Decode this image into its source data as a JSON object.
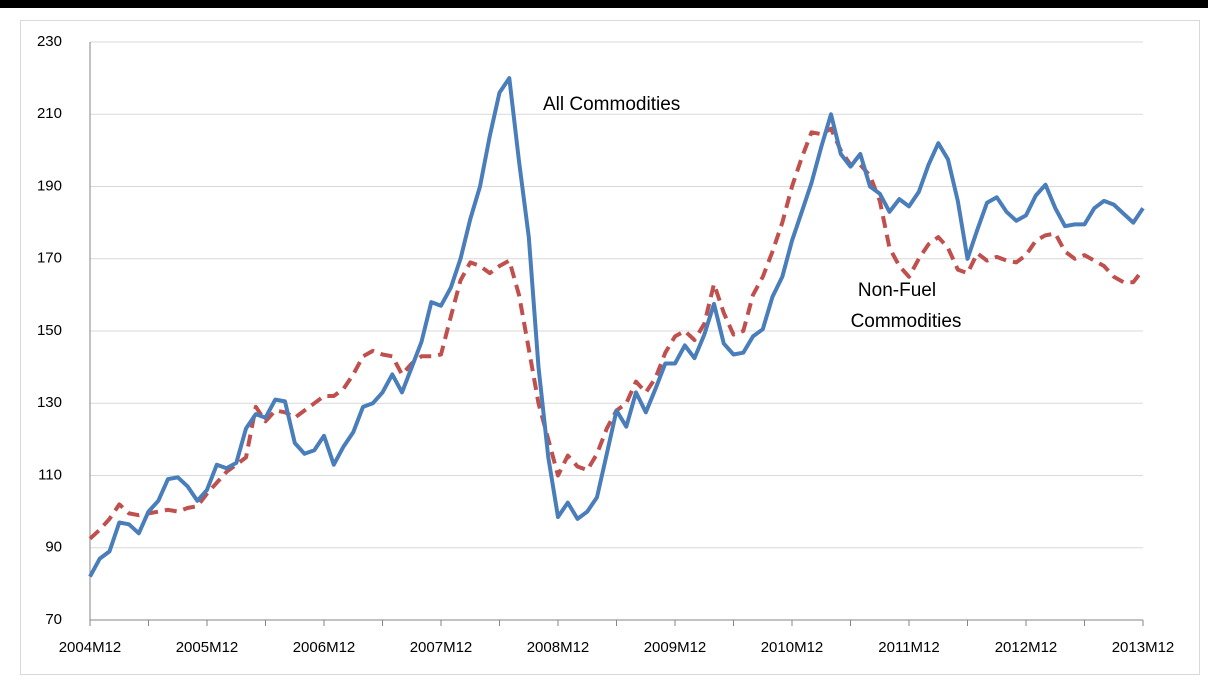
{
  "chart_data": {
    "type": "line",
    "annotations": [
      "All Commodities",
      "Non-Fuel",
      "Commodities"
    ],
    "categories": [
      "2004M12",
      null,
      null,
      null,
      null,
      null,
      null,
      null,
      null,
      null,
      null,
      null,
      "2005M12",
      null,
      null,
      null,
      null,
      null,
      null,
      null,
      null,
      null,
      null,
      null,
      "2006M12",
      null,
      null,
      null,
      null,
      null,
      null,
      null,
      null,
      null,
      null,
      null,
      "2007M12",
      null,
      null,
      null,
      null,
      null,
      null,
      null,
      null,
      null,
      null,
      null,
      "2008M12",
      null,
      null,
      null,
      null,
      null,
      null,
      null,
      null,
      null,
      null,
      null,
      "2009M12",
      null,
      null,
      null,
      null,
      null,
      null,
      null,
      null,
      null,
      null,
      null,
      "2010M12",
      null,
      null,
      null,
      null,
      null,
      null,
      null,
      null,
      null,
      null,
      null,
      "2011M12",
      null,
      null,
      null,
      null,
      null,
      null,
      null,
      null,
      null,
      null,
      null,
      "2012M12",
      null,
      null,
      null,
      null,
      null,
      null,
      null,
      null,
      null,
      null,
      null,
      "2013M12"
    ],
    "series": [
      {
        "color": "#4a7ebb",
        "style": "solid",
        "values": [
          82,
          87,
          89,
          97,
          96.5,
          94,
          100,
          103,
          109,
          109.5,
          107,
          103,
          106,
          113,
          112,
          113.5,
          123,
          127,
          126,
          131,
          130.5,
          119,
          116,
          117,
          121,
          113,
          118,
          122,
          129,
          130,
          133,
          138,
          133,
          140,
          147,
          158,
          157,
          162,
          170,
          181,
          190,
          204,
          216,
          220,
          197,
          176,
          140,
          115,
          98.5,
          102.5,
          98,
          100,
          104,
          116,
          128,
          123.5,
          133,
          127.5,
          134,
          141,
          141,
          146,
          142.5,
          149,
          157.5,
          146.5,
          143.5,
          144,
          148.5,
          150.5,
          159.5,
          165,
          175,
          183,
          191,
          201,
          210,
          199,
          195.5,
          199,
          190,
          188,
          183,
          186.5,
          184.5,
          188.5,
          196,
          202,
          197.5,
          186,
          170,
          178,
          185.5,
          187,
          183,
          180.5,
          182,
          187.5,
          190.5,
          184,
          179,
          179.5,
          179.5,
          184,
          186,
          185,
          182.5,
          180,
          184
        ]
      },
      {
        "color": "#c0504d",
        "style": "dashed",
        "values": [
          92.5,
          95,
          98,
          102,
          99.5,
          99,
          99.5,
          100,
          100.5,
          100,
          101,
          101.5,
          105,
          108,
          111,
          113,
          115,
          129,
          125,
          128,
          127.5,
          126,
          128,
          130,
          132,
          132,
          134,
          138,
          143,
          144.5,
          143.5,
          143,
          138,
          141,
          143,
          143,
          143.5,
          154,
          164,
          169,
          168,
          166,
          168,
          169.5,
          160,
          145,
          130,
          120,
          110,
          115.5,
          112.5,
          111.5,
          116,
          123,
          128,
          130,
          136,
          133,
          137,
          144,
          148.5,
          150,
          147.5,
          152,
          163,
          155,
          149,
          150,
          160,
          165,
          172,
          180,
          190,
          198,
          205,
          204.5,
          206,
          200,
          196,
          196,
          193,
          186,
          173,
          168,
          165,
          170,
          174,
          176,
          173,
          167,
          166,
          171.5,
          169.5,
          170.5,
          169.5,
          169,
          171,
          175,
          176.5,
          177,
          172,
          170,
          171,
          169.5,
          168,
          165,
          163.5,
          163.5,
          167
        ]
      }
    ],
    "ylim": [
      70,
      230
    ],
    "yticks": [
      70,
      90,
      110,
      130,
      150,
      170,
      190,
      210,
      230
    ],
    "grid": true
  }
}
